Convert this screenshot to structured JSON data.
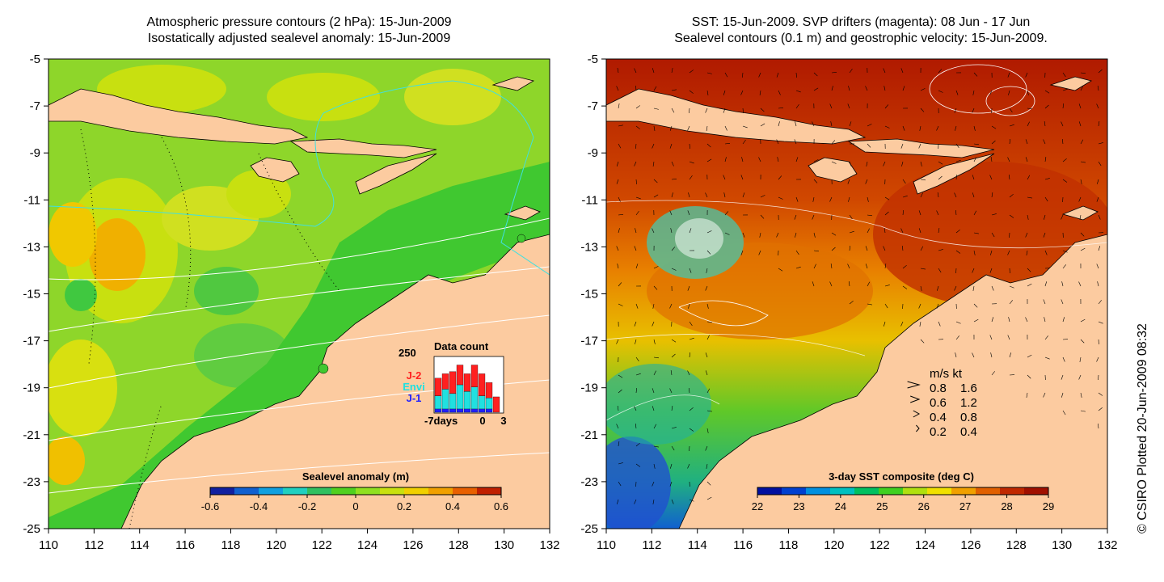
{
  "left_panel": {
    "title_line1": "Atmospheric pressure contours (2 hPa): 15-Jun-2009",
    "title_line2": "Isostatically adjusted sealevel anomaly: 15-Jun-2009",
    "y_ticks": [
      "-5",
      "-7",
      "-9",
      "-11",
      "-13",
      "-15",
      "-17",
      "-19",
      "-21",
      "-23",
      "-25"
    ],
    "x_ticks": [
      "110",
      "112",
      "114",
      "116",
      "118",
      "120",
      "122",
      "124",
      "126",
      "128",
      "130",
      "132"
    ],
    "colorbar": {
      "title": "Sealevel anomaly (m)",
      "labels": [
        "-0.6",
        "-0.4",
        "-0.2",
        "0",
        "0.2",
        "0.4",
        "0.6"
      ],
      "colors": [
        "#1020a0",
        "#1060d0",
        "#10a0e0",
        "#20d0c0",
        "#30c060",
        "#50d020",
        "#90e020",
        "#c8e010",
        "#f0d000",
        "#f0a000",
        "#e86000",
        "#c02000"
      ]
    },
    "data_count": {
      "title": "Data count",
      "y_max_label": "250",
      "x_labels": [
        "-7days",
        "0",
        "3"
      ],
      "legend": [
        {
          "name": "J-2",
          "color": "#ff2020"
        },
        {
          "name": "Envi",
          "color": "#20e0e0"
        },
        {
          "name": "J-1",
          "color": "#2020ff"
        }
      ],
      "bars": [
        {
          "j1": 15,
          "envi": 60,
          "j2": 80
        },
        {
          "j1": 15,
          "envi": 90,
          "j2": 70
        },
        {
          "j1": 15,
          "envi": 70,
          "j2": 100
        },
        {
          "j1": 15,
          "envi": 110,
          "j2": 90
        },
        {
          "j1": 15,
          "envi": 80,
          "j2": 80
        },
        {
          "j1": 15,
          "envi": 100,
          "j2": 100
        },
        {
          "j1": 15,
          "envi": 60,
          "j2": 100
        },
        {
          "j1": 15,
          "envi": 50,
          "j2": 70
        },
        {
          "j1": 0,
          "envi": 0,
          "j2": 70
        }
      ]
    }
  },
  "right_panel": {
    "title_line1": "SST: 15-Jun-2009. SVP drifters (magenta): 08 Jun - 17 Jun",
    "title_line2": "Sealevel contours (0.1 m) and geostrophic velocity: 15-Jun-2009.",
    "y_ticks": [
      "-5",
      "-7",
      "-9",
      "-11",
      "-13",
      "-15",
      "-17",
      "-19",
      "-21",
      "-23",
      "-25"
    ],
    "x_ticks": [
      "110",
      "112",
      "114",
      "116",
      "118",
      "120",
      "122",
      "124",
      "126",
      "128",
      "130",
      "132"
    ],
    "colorbar": {
      "title": "3-day SST composite (deg C)",
      "labels": [
        "22",
        "23",
        "24",
        "25",
        "26",
        "27",
        "28",
        "29"
      ],
      "colors": [
        "#0010a0",
        "#0040d0",
        "#0090e0",
        "#00c0c0",
        "#00c060",
        "#40d020",
        "#b0e010",
        "#f0e000",
        "#f0a000",
        "#e06000",
        "#c02800",
        "#a01000"
      ]
    },
    "velocity_key": {
      "header": "m/s  kt",
      "rows": [
        {
          "ms": "0.8",
          "kt": "1.6"
        },
        {
          "ms": "0.6",
          "kt": "1.2"
        },
        {
          "ms": "0.4",
          "kt": "0.8"
        },
        {
          "ms": "0.2",
          "kt": "0.4"
        }
      ]
    }
  },
  "copyright": "© CSIRO Plotted 20-Jun-2009 08:32"
}
